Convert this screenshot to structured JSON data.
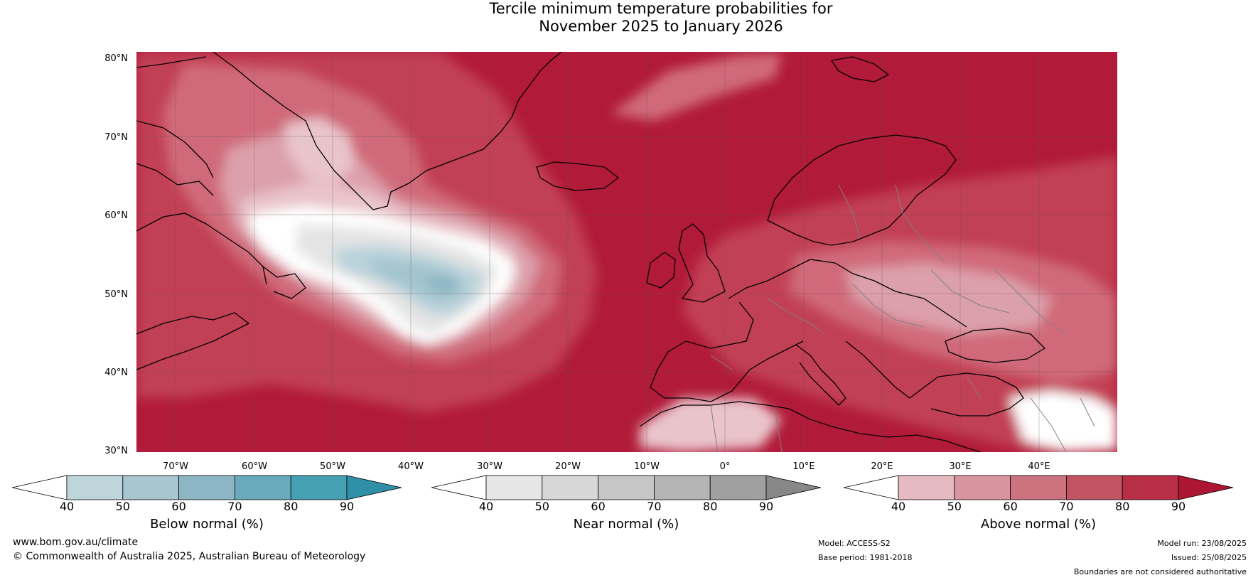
{
  "title": {
    "line1": "Tercile minimum temperature probabilities for",
    "line2": "November 2025 to January 2026"
  },
  "map": {
    "lat_ticks": [
      "80°N",
      "70°N",
      "60°N",
      "50°N",
      "40°N",
      "30°N"
    ],
    "lon_ticks": [
      "70°W",
      "60°W",
      "50°W",
      "40°W",
      "30°W",
      "20°W",
      "10°W",
      "0°",
      "10°E",
      "20°E",
      "30°E",
      "40°E"
    ],
    "lon_range": [
      -75,
      50
    ],
    "lat_range": [
      30,
      81
    ],
    "colors": {
      "above_90": "#b11b39",
      "above_80": "#c23f54",
      "above_70": "#d06b7a",
      "above_60": "#dca0aa",
      "above_50": "#e9c4ca",
      "near_40": "#ffffff",
      "near_50": "#e4e4e4",
      "below_50": "#b9d2da",
      "below_60": "#a3c4ce",
      "below_70": "#8db6c4",
      "coastline": "#000000",
      "border": "#808080"
    }
  },
  "colorbars": [
    {
      "name": "below",
      "label": "Below normal (%)",
      "ticks": [
        "40",
        "50",
        "60",
        "70",
        "80",
        "90"
      ],
      "colors": [
        "#ffffff",
        "#bed5dc",
        "#a7c6cf",
        "#8cb6c4",
        "#6aaabd",
        "#45a0b4",
        "#2e8fa6"
      ]
    },
    {
      "name": "near",
      "label": "Near normal (%)",
      "ticks": [
        "40",
        "50",
        "60",
        "70",
        "80",
        "90"
      ],
      "colors": [
        "#ffffff",
        "#e6e6e6",
        "#d7d7d7",
        "#c6c6c6",
        "#b4b4b4",
        "#a0a0a0",
        "#878787"
      ]
    },
    {
      "name": "above",
      "label": "Above normal (%)",
      "ticks": [
        "40",
        "50",
        "60",
        "70",
        "80",
        "90"
      ],
      "colors": [
        "#ffffff",
        "#e6bac1",
        "#d9959f",
        "#cd727f",
        "#c25464",
        "#b72e45",
        "#ac1632"
      ]
    }
  ],
  "footer": {
    "website": "www.bom.gov.au/climate",
    "copyright": "© Commonwealth of Australia 2025, Australian Bureau of Meteorology",
    "model": "Model: ACCESS-S2",
    "base_period": "Base period: 1981-2018",
    "model_run": "Model run: 23/08/2025",
    "issued": "Issued: 25/08/2025",
    "disclaimer": "Boundaries are not considered authoritative"
  }
}
